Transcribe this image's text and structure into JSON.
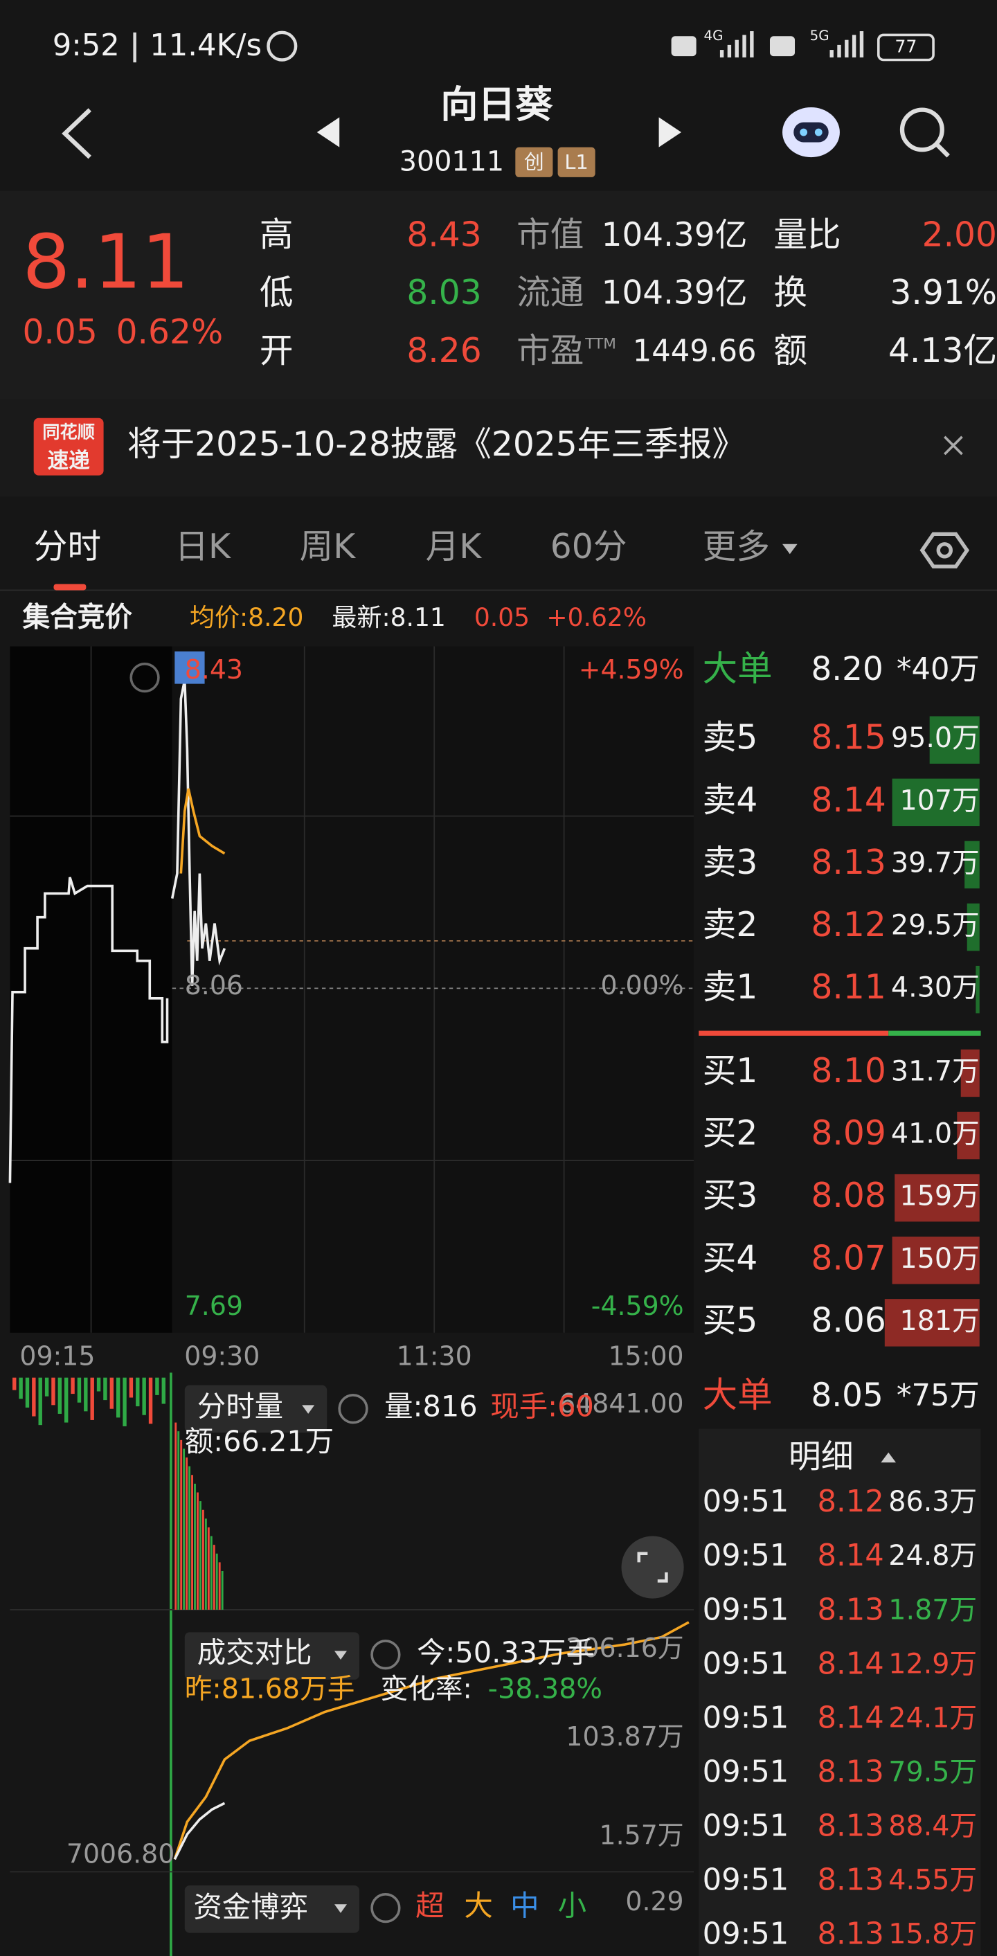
{
  "status": {
    "time": "9:52",
    "speed": "11.4K/s",
    "net1": "4G",
    "net2": "5G",
    "battery": "77"
  },
  "header": {
    "title": "向日葵",
    "code": "300111",
    "badge1": "创",
    "badge2": "L1"
  },
  "quote": {
    "price": "8.11",
    "change": "0.05",
    "percent": "0.62%",
    "stats": [
      [
        "高",
        "8.43",
        "市值",
        "104.39亿",
        "量比",
        "2.00"
      ],
      [
        "低",
        "8.03",
        "流通",
        "104.39亿",
        "换",
        "3.91%"
      ],
      [
        "开",
        "8.26",
        "市盈",
        "1449.66",
        "额",
        "4.13亿"
      ]
    ],
    "ttm": "TTM"
  },
  "notice": {
    "logo1": "同花顺",
    "logo2": "速递",
    "text": "将于2025-10-28披露《2025年三季报》"
  },
  "tabs": [
    "分时",
    "日K",
    "周K",
    "月K",
    "60分",
    "更多"
  ],
  "info": {
    "label": "集合竞价",
    "avg": "均价:8.20",
    "latest": "最新:8.11",
    "change": "0.05",
    "percent": "+0.62%"
  },
  "chart": {
    "high": "8.43",
    "high_pct": "+4.59%",
    "mid": "8.06",
    "mid_pct": "0.00%",
    "low": "7.69",
    "low_pct": "-4.59%",
    "times": [
      "09:15",
      "09:30",
      "11:30",
      "15:00"
    ]
  },
  "orderbook": {
    "big_top": {
      "label": "大单",
      "price": "8.20",
      "volume": "*40万"
    },
    "asks": [
      [
        "卖5",
        "8.15",
        "95.0万"
      ],
      [
        "卖4",
        "8.14",
        "107万"
      ],
      [
        "卖3",
        "8.13",
        "39.7万"
      ],
      [
        "卖2",
        "8.12",
        "29.5万"
      ],
      [
        "卖1",
        "8.11",
        "4.30万"
      ]
    ],
    "bids": [
      [
        "买1",
        "8.10",
        "31.7万"
      ],
      [
        "买2",
        "8.09",
        "41.0万"
      ],
      [
        "买3",
        "8.08",
        "159万"
      ],
      [
        "买4",
        "8.07",
        "150万"
      ],
      [
        "买5",
        "8.06",
        "181万"
      ]
    ],
    "big_bottom": {
      "label": "大单",
      "price": "8.05",
      "volume": "*75万"
    }
  },
  "detail": {
    "title": "明细",
    "rows": [
      {
        "time": "09:51",
        "price": "8.12",
        "volume": "86.3万",
        "color": "#f2f2f2"
      },
      {
        "time": "09:51",
        "price": "8.14",
        "volume": "24.8万",
        "color": "#f2f2f2"
      },
      {
        "time": "09:51",
        "price": "8.13",
        "volume": "1.87万",
        "color": "#35b24a"
      },
      {
        "time": "09:51",
        "price": "8.14",
        "volume": "12.9万",
        "color": "#f04a3a"
      },
      {
        "time": "09:51",
        "price": "8.14",
        "volume": "24.1万",
        "color": "#f04a3a"
      },
      {
        "time": "09:51",
        "price": "8.13",
        "volume": "79.5万",
        "color": "#35b24a"
      },
      {
        "time": "09:51",
        "price": "8.13",
        "volume": "88.4万",
        "color": "#f04a3a"
      },
      {
        "time": "09:51",
        "price": "8.13",
        "volume": "4.55万",
        "color": "#f04a3a"
      },
      {
        "time": "09:51",
        "price": "8.13",
        "volume": "15.8万",
        "color": "#f04a3a"
      }
    ]
  },
  "volume": {
    "label": "分时量",
    "amount": "量:816",
    "hand": "现手:60",
    "max": "64841.00",
    "money": "额:66.21万"
  },
  "compare": {
    "label": "成交对比",
    "today": "今:50.33万手",
    "top": "206.16万",
    "yesterday": "昨:81.68万手",
    "rate_label": "变化率:",
    "rate": "-38.38%",
    "mid": "103.87万",
    "low": "1.57万",
    "left": "7006.80"
  },
  "funds": {
    "label": "资金博弈",
    "super": "超",
    "big": "大",
    "medium": "中",
    "small": "小",
    "value": "0.29"
  }
}
